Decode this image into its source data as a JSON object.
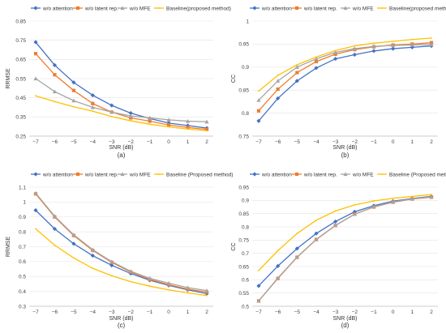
{
  "colors": {
    "wo_attention": "#4472C4",
    "wo_latent": "#ED7D31",
    "wo_mfe": "#A5A5A5",
    "baseline": "#FFC000",
    "grid": "#e3e3e3"
  },
  "chart_data": [
    {
      "type": "line",
      "caption": "(a)",
      "xlabel": "SNR (dB)",
      "ylabel": "RRMSE",
      "x": [
        -7,
        -6,
        -5,
        -4,
        -3,
        -2,
        -1,
        0,
        1,
        2
      ],
      "ylim": [
        0.25,
        0.85
      ],
      "yticks": [
        "0.25",
        "0.35",
        "0.45",
        "0.55",
        "0.65",
        "0.75",
        "0.85"
      ],
      "ytick_values": [
        0.25,
        0.35,
        0.45,
        0.55,
        0.65,
        0.75,
        0.85
      ],
      "grid": true,
      "legend": "top",
      "series": [
        {
          "name": "w/o attention",
          "color_key": "wo_attention",
          "values": [
            0.74,
            0.62,
            0.53,
            0.463,
            0.41,
            0.37,
            0.342,
            0.318,
            0.305,
            0.292
          ]
        },
        {
          "name": "w/o latent rep.",
          "color_key": "wo_latent",
          "values": [
            0.68,
            0.57,
            0.488,
            0.42,
            0.375,
            0.345,
            0.328,
            0.308,
            0.295,
            0.285
          ]
        },
        {
          "name": "w/o MFE",
          "color_key": "wo_mfe",
          "values": [
            0.55,
            0.482,
            0.435,
            0.4,
            0.375,
            0.355,
            0.345,
            0.335,
            0.328,
            0.325
          ]
        },
        {
          "name": "Baseline(proposed method)",
          "color_key": "baseline",
          "values": [
            0.46,
            0.43,
            0.403,
            0.38,
            0.352,
            0.33,
            0.312,
            0.298,
            0.287,
            0.278
          ]
        }
      ]
    },
    {
      "type": "line",
      "caption": "(b)",
      "xlabel": "SNR (dB)",
      "ylabel": "CC",
      "x": [
        -7,
        -6,
        -5,
        -4,
        -3,
        -2,
        -1,
        0,
        1,
        2
      ],
      "ylim": [
        0.75,
        1.0
      ],
      "yticks": [
        "0.75",
        "0.8",
        "0.85",
        "0.9",
        "0.95",
        "1"
      ],
      "ytick_values": [
        0.75,
        0.8,
        0.85,
        0.9,
        0.95,
        1.0
      ],
      "grid": true,
      "legend": "top",
      "series": [
        {
          "name": "w/o attention",
          "color_key": "wo_attention",
          "values": [
            0.783,
            0.832,
            0.87,
            0.898,
            0.918,
            0.927,
            0.935,
            0.94,
            0.943,
            0.946
          ]
        },
        {
          "name": "w/o latent rep.",
          "color_key": "wo_latent",
          "values": [
            0.805,
            0.852,
            0.888,
            0.912,
            0.928,
            0.938,
            0.944,
            0.948,
            0.95,
            0.953
          ]
        },
        {
          "name": "w/o MFE",
          "color_key": "wo_mfe",
          "values": [
            0.828,
            0.87,
            0.9,
            0.918,
            0.932,
            0.94,
            0.945,
            0.947,
            0.948,
            0.949
          ]
        },
        {
          "name": "Baseline(proposed method)",
          "color_key": "baseline",
          "values": [
            0.848,
            0.882,
            0.905,
            0.922,
            0.936,
            0.946,
            0.952,
            0.956,
            0.96,
            0.963
          ]
        }
      ]
    },
    {
      "type": "line",
      "caption": "(c)",
      "xlabel": "SNR (dB)",
      "ylabel": "RRMSE",
      "x": [
        -7,
        -6,
        -5,
        -4,
        -3,
        -2,
        -1,
        0,
        1,
        2
      ],
      "ylim": [
        0.3,
        1.1
      ],
      "yticks": [
        "0.3",
        "0.4",
        "0.5",
        "0.6",
        "0.7",
        "0.8",
        "0.9",
        "1",
        "1.1"
      ],
      "ytick_values": [
        0.3,
        0.4,
        0.5,
        0.6,
        0.7,
        0.8,
        0.9,
        1.0,
        1.1
      ],
      "grid": true,
      "legend": "top",
      "series": [
        {
          "name": "w/o attention",
          "color_key": "wo_attention",
          "values": [
            0.945,
            0.82,
            0.72,
            0.64,
            0.575,
            0.52,
            0.475,
            0.44,
            0.41,
            0.385
          ]
        },
        {
          "name": "w/o latent rep.",
          "color_key": "wo_latent",
          "values": [
            1.055,
            0.9,
            0.775,
            0.675,
            0.595,
            0.53,
            0.48,
            0.445,
            0.415,
            0.395
          ]
        },
        {
          "name": "w/o MFE",
          "color_key": "wo_mfe",
          "values": [
            1.06,
            0.905,
            0.78,
            0.68,
            0.6,
            0.535,
            0.488,
            0.455,
            0.425,
            0.405
          ]
        },
        {
          "name": "Baseline (Proposed method)",
          "color_key": "baseline",
          "values": [
            0.82,
            0.71,
            0.625,
            0.555,
            0.505,
            0.465,
            0.435,
            0.41,
            0.39,
            0.372
          ]
        }
      ]
    },
    {
      "type": "line",
      "caption": "(d)",
      "xlabel": "SNR (dB)",
      "ylabel": "CC",
      "x": [
        -7,
        -6,
        -5,
        -4,
        -3,
        -2,
        -1,
        0,
        1,
        2
      ],
      "ylim": [
        0.5,
        0.95
      ],
      "yticks": [
        "0.5",
        "0.55",
        "0.6",
        "0.65",
        "0.7",
        "0.75",
        "0.8",
        "0.85",
        "0.9",
        "0.95"
      ],
      "ytick_values": [
        0.5,
        0.55,
        0.6,
        0.65,
        0.7,
        0.75,
        0.8,
        0.85,
        0.9,
        0.95
      ],
      "grid": true,
      "legend": "top",
      "series": [
        {
          "name": "w/o attention",
          "color_key": "wo_attention",
          "values": [
            0.577,
            0.652,
            0.718,
            0.775,
            0.82,
            0.857,
            0.88,
            0.897,
            0.907,
            0.915
          ]
        },
        {
          "name": "w/o latent rep.",
          "color_key": "wo_latent",
          "values": [
            0.52,
            0.605,
            0.685,
            0.752,
            0.805,
            0.848,
            0.875,
            0.893,
            0.905,
            0.912
          ]
        },
        {
          "name": "w/o MFE",
          "color_key": "wo_mfe",
          "values": [
            0.52,
            0.607,
            0.686,
            0.753,
            0.806,
            0.848,
            0.876,
            0.894,
            0.906,
            0.913
          ]
        },
        {
          "name": "Baseline (Proposed method)",
          "color_key": "baseline",
          "values": [
            0.635,
            0.71,
            0.775,
            0.825,
            0.86,
            0.883,
            0.898,
            0.908,
            0.915,
            0.922
          ]
        }
      ]
    }
  ]
}
